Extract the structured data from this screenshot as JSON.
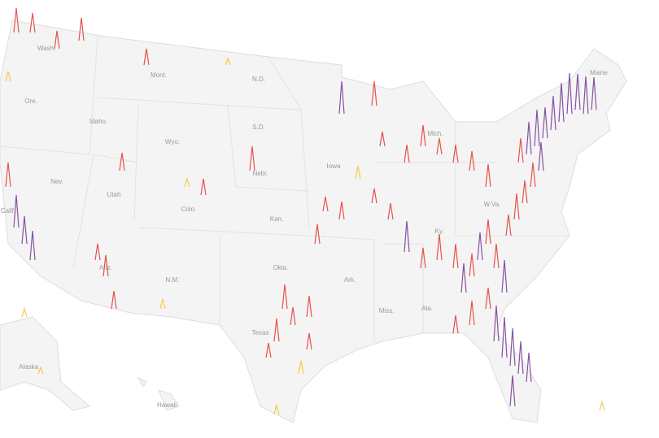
{
  "map": {
    "labels": [
      "Wash.",
      "Ore.",
      "Mont.",
      "Idaho",
      "Wyo.",
      "N.D.",
      "S.D.",
      "Nebr.",
      "Nev.",
      "Utah",
      "Colo.",
      "Calif.",
      "Kan.",
      "Iowa",
      "Mich.",
      "Maine",
      "W.Va.",
      "Ky.",
      "Ariz.",
      "N.M.",
      "Okla.",
      "Ark.",
      "Miss.",
      "Ala.",
      "Texas",
      "Alaska",
      "Hawaii"
    ],
    "colors": [
      "#eec63a",
      "#e4403a",
      "#7a3f9c"
    ],
    "spikes": [
      30,
      40,
      45,
      38,
      42,
      48,
      50,
      44,
      46,
      40,
      35,
      30,
      28,
      32,
      26,
      30,
      34,
      28,
      36,
      30,
      32,
      25,
      38,
      30,
      40,
      26,
      30,
      22,
      44,
      50,
      46,
      40,
      36,
      38,
      40,
      30,
      18,
      22,
      26,
      20,
      22,
      24,
      28,
      16,
      18,
      20,
      22,
      18,
      24,
      30,
      22,
      28,
      20,
      18,
      26,
      16,
      12,
      30,
      24,
      22,
      28,
      12,
      40,
      34,
      36,
      30,
      20,
      26,
      22,
      22,
      10,
      20,
      30,
      12,
      10,
      8,
      10,
      20,
      8
    ]
  }
}
